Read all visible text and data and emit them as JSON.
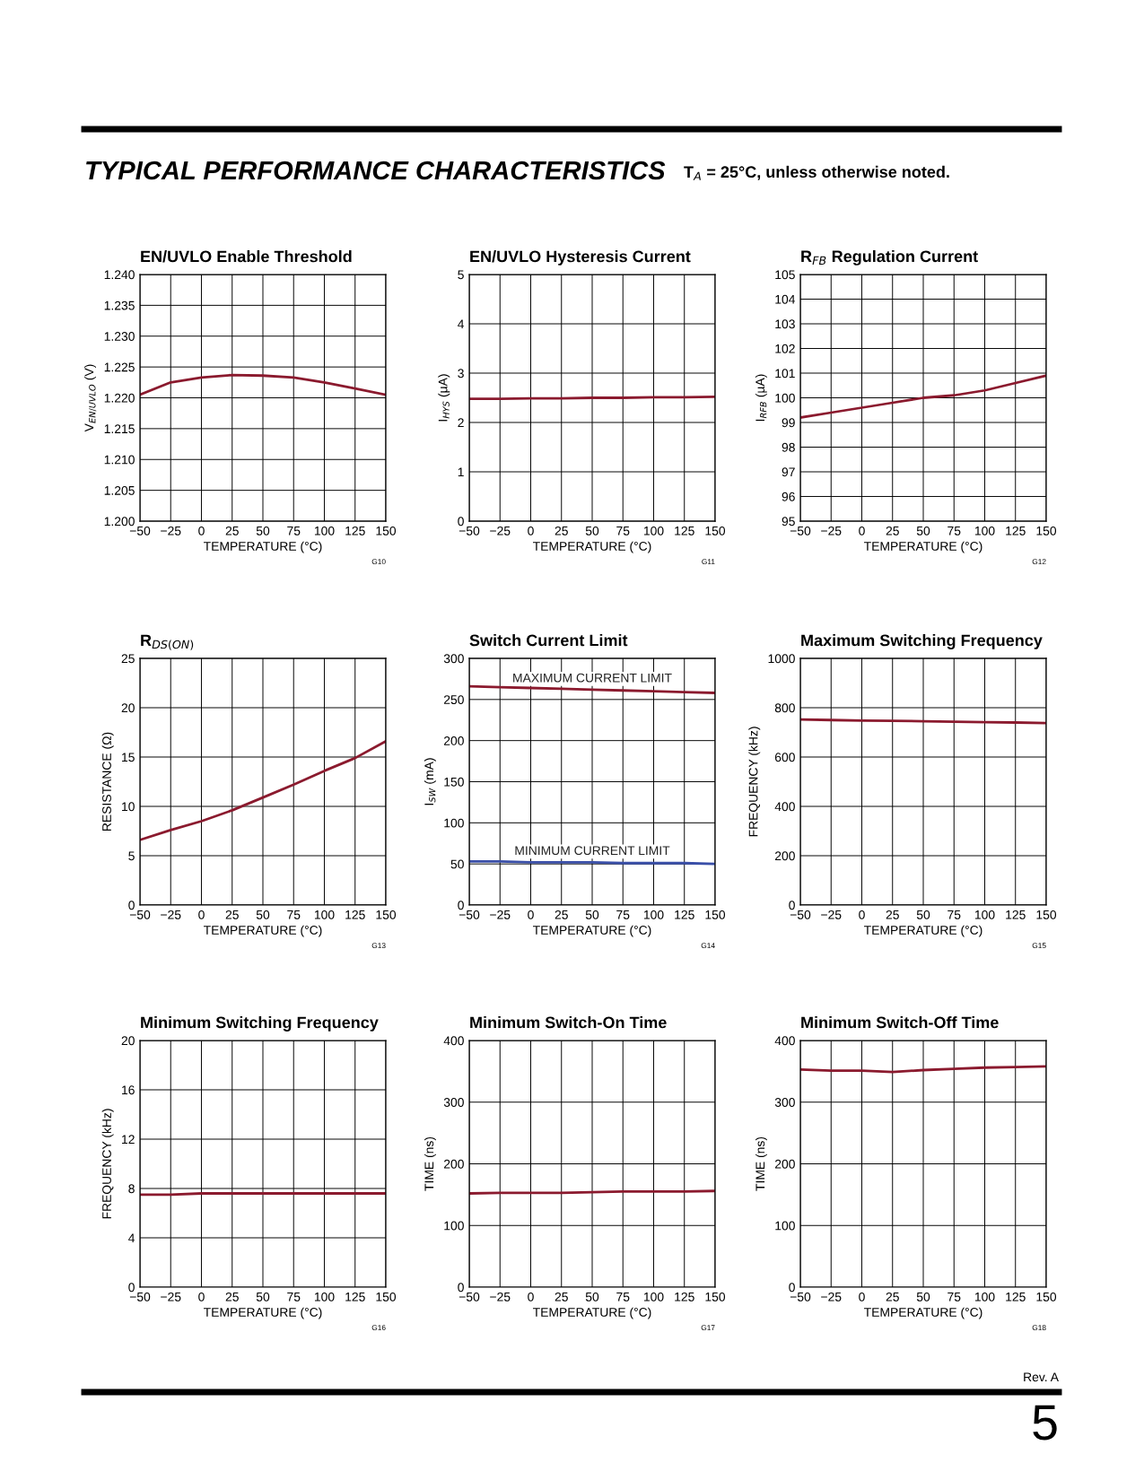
{
  "chart_data": [
    {
      "type": "line",
      "title": "EN/UVLO Enable Threshold",
      "xlabel": "TEMPERATURE (°C)",
      "ylabel": "V$_{EN/UVLO}$ (V)",
      "annotations": [
        "G10",
        "TYPICAL PERFORMANCE CHARACTERISTICS",
        "T$_{A}$ = 25°C, unless otherwise noted."
      ],
      "x": [
        -50,
        -25,
        0,
        25,
        50,
        75,
        100,
        125,
        150
      ],
      "series": [
        {
          "color": "#8b1a2e",
          "values": [
            1.2205,
            1.2225,
            1.2233,
            1.2237,
            1.2236,
            1.2233,
            1.2225,
            1.2215,
            1.2205
          ]
        }
      ],
      "xlim": [
        -50,
        150
      ],
      "xticks": [
        -50,
        -25,
        0,
        25,
        50,
        75,
        100,
        125,
        150
      ],
      "ylim": [
        1.2,
        1.24
      ],
      "yticks": [
        {
          "value": 1.2,
          "label": "1.200"
        },
        {
          "value": 1.205,
          "label": "1.205"
        },
        {
          "value": 1.21,
          "label": "1.210"
        },
        {
          "value": 1.215,
          "label": "1.215"
        },
        {
          "value": 1.22,
          "label": "1.220"
        },
        {
          "value": 1.225,
          "label": "1.225"
        },
        {
          "value": 1.23,
          "label": "1.230"
        },
        {
          "value": 1.235,
          "label": "1.235"
        },
        {
          "value": 1.24,
          "label": "1.240"
        }
      ],
      "grid": true,
      "legend": false
    },
    {
      "type": "line",
      "title": "EN/UVLO Hysteresis Current",
      "xlabel": "TEMPERATURE (°C)",
      "ylabel": "I$_{HYS}$ (µA)",
      "annotations": [
        "G11"
      ],
      "x": [
        -50,
        -25,
        0,
        25,
        50,
        75,
        100,
        125,
        150
      ],
      "series": [
        {
          "color": "#8b1a2e",
          "values": [
            2.48,
            2.48,
            2.49,
            2.49,
            2.5,
            2.5,
            2.51,
            2.51,
            2.52
          ]
        }
      ],
      "xlim": [
        -50,
        150
      ],
      "xticks": [
        -50,
        -25,
        0,
        25,
        50,
        75,
        100,
        125,
        150
      ],
      "ylim": [
        0,
        5
      ],
      "yticks": [
        0,
        1,
        2,
        3,
        4,
        5
      ],
      "grid": true,
      "legend": false
    },
    {
      "type": "line",
      "title": "R$_{FB}$ Regulation Current",
      "xlabel": "TEMPERATURE (°C)",
      "ylabel": "I$_{RFB}$ (µA)",
      "annotations": [
        "G12"
      ],
      "x": [
        -50,
        -25,
        0,
        25,
        50,
        75,
        100,
        125,
        150
      ],
      "series": [
        {
          "color": "#8b1a2e",
          "values": [
            99.2,
            99.4,
            99.6,
            99.8,
            100.0,
            100.1,
            100.3,
            100.6,
            100.9
          ]
        }
      ],
      "xlim": [
        -50,
        150
      ],
      "xticks": [
        -50,
        -25,
        0,
        25,
        50,
        75,
        100,
        125,
        150
      ],
      "ylim": [
        95,
        105
      ],
      "yticks": [
        95,
        96,
        97,
        98,
        99,
        100,
        101,
        102,
        103,
        104,
        105
      ],
      "grid": true,
      "legend": false
    },
    {
      "type": "line",
      "title": "R$_{DS(ON)}$",
      "xlabel": "TEMPERATURE (°C)",
      "ylabel": "RESISTANCE (Ω)",
      "annotations": [
        "G13"
      ],
      "x": [
        -50,
        -25,
        0,
        25,
        50,
        75,
        100,
        125,
        150
      ],
      "series": [
        {
          "color": "#8b1a2e",
          "values": [
            6.6,
            7.6,
            8.5,
            9.6,
            10.9,
            12.2,
            13.6,
            14.9,
            16.6
          ]
        }
      ],
      "xlim": [
        -50,
        150
      ],
      "xticks": [
        -50,
        -25,
        0,
        25,
        50,
        75,
        100,
        125,
        150
      ],
      "ylim": [
        0,
        25
      ],
      "yticks": [
        0,
        5,
        10,
        15,
        20,
        25
      ],
      "grid": true,
      "legend": false
    },
    {
      "type": "line",
      "title": "Switch Current Limit",
      "xlabel": "TEMPERATURE (°C)",
      "ylabel": "I$_{SW}$ (mA)",
      "annotations": [
        "G14"
      ],
      "x": [
        -50,
        -25,
        0,
        25,
        50,
        75,
        100,
        125,
        150
      ],
      "series": [
        {
          "name": "MAXIMUM CURRENT LIMIT",
          "color": "#8b1a2e",
          "values": [
            266,
            265,
            264,
            263,
            262,
            261,
            260,
            259,
            258
          ]
        },
        {
          "name": "MINIMUM CURRENT LIMIT",
          "color": "#3a4fa8",
          "values": [
            53,
            53,
            52,
            52,
            52,
            51,
            51,
            51,
            50
          ]
        }
      ],
      "xlim": [
        -50,
        150
      ],
      "xticks": [
        -50,
        -25,
        0,
        25,
        50,
        75,
        100,
        125,
        150
      ],
      "ylim": [
        0,
        300
      ],
      "yticks": [
        0,
        50,
        100,
        150,
        200,
        250,
        300
      ],
      "grid": true,
      "legend": false
    },
    {
      "type": "line",
      "title": "Maximum Switching Frequency",
      "xlabel": "TEMPERATURE (°C)",
      "ylabel": "FREQUENCY (kHz)",
      "annotations": [
        "G15"
      ],
      "x": [
        -50,
        -25,
        0,
        25,
        50,
        75,
        100,
        125,
        150
      ],
      "series": [
        {
          "color": "#8b1a2e",
          "values": [
            752,
            750,
            748,
            747,
            745,
            743,
            741,
            740,
            738
          ]
        }
      ],
      "xlim": [
        -50,
        150
      ],
      "xticks": [
        -50,
        -25,
        0,
        25,
        50,
        75,
        100,
        125,
        150
      ],
      "ylim": [
        0,
        1000
      ],
      "yticks": [
        0,
        200,
        400,
        600,
        800,
        1000
      ],
      "grid": true,
      "legend": false
    },
    {
      "type": "line",
      "title": "Minimum Switching Frequency",
      "xlabel": "TEMPERATURE (°C)",
      "ylabel": "FREQUENCY (kHz)",
      "annotations": [
        "G16"
      ],
      "x": [
        -50,
        -25,
        0,
        25,
        50,
        75,
        100,
        125,
        150
      ],
      "series": [
        {
          "color": "#8b1a2e",
          "values": [
            7.5,
            7.5,
            7.6,
            7.6,
            7.6,
            7.6,
            7.6,
            7.6,
            7.6
          ]
        }
      ],
      "xlim": [
        -50,
        150
      ],
      "xticks": [
        -50,
        -25,
        0,
        25,
        50,
        75,
        100,
        125,
        150
      ],
      "ylim": [
        0,
        20
      ],
      "yticks": [
        0,
        4,
        8,
        12,
        16,
        20
      ],
      "grid": true,
      "legend": false
    },
    {
      "type": "line",
      "title": "Minimum Switch-On Time",
      "xlabel": "TEMPERATURE (°C)",
      "ylabel": "TIME (ns)",
      "annotations": [
        "G17"
      ],
      "x": [
        -50,
        -25,
        0,
        25,
        50,
        75,
        100,
        125,
        150
      ],
      "series": [
        {
          "color": "#8b1a2e",
          "values": [
            152,
            153,
            153,
            153,
            154,
            155,
            155,
            155,
            156
          ]
        }
      ],
      "xlim": [
        -50,
        150
      ],
      "xticks": [
        -50,
        -25,
        0,
        25,
        50,
        75,
        100,
        125,
        150
      ],
      "ylim": [
        0,
        400
      ],
      "yticks": [
        0,
        100,
        200,
        300,
        400
      ],
      "grid": true,
      "legend": false
    },
    {
      "type": "line",
      "title": "Minimum Switch-Off Time",
      "xlabel": "TEMPERATURE (°C)",
      "ylabel": "TIME (ns)",
      "annotations": [
        "G18",
        "Rev. A",
        "5"
      ],
      "x": [
        -50,
        -25,
        0,
        25,
        50,
        75,
        100,
        125,
        150
      ],
      "series": [
        {
          "color": "#8b1a2e",
          "values": [
            353,
            351,
            351,
            349,
            352,
            354,
            356,
            357,
            358
          ]
        }
      ],
      "xlim": [
        -50,
        150
      ],
      "xticks": [
        -50,
        -25,
        0,
        25,
        50,
        75,
        100,
        125,
        150
      ],
      "ylim": [
        0,
        400
      ],
      "yticks": [
        0,
        100,
        200,
        300,
        400
      ],
      "grid": true,
      "legend": false
    }
  ]
}
